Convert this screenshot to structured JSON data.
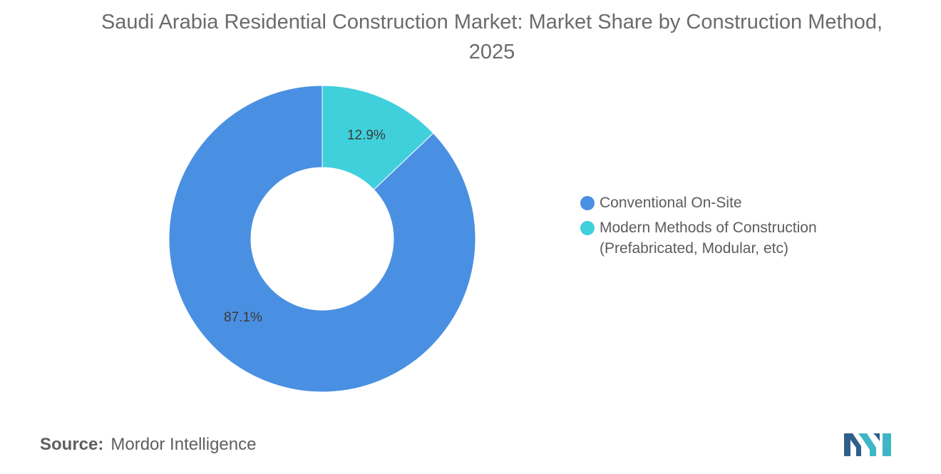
{
  "chart_data": {
    "type": "pie",
    "donut": true,
    "title": "Saudi Arabia Residential Construction Market: Market Share by Construction Method, 2025",
    "categories": [
      "Conventional On-Site",
      "Modern Methods of Construction (Prefabricated, Modular, etc)"
    ],
    "values": [
      87.1,
      12.9
    ],
    "value_labels": [
      "87.1%",
      "12.9%"
    ],
    "unit": "%",
    "colors": [
      "#4a90e2",
      "#3fd0dc"
    ],
    "legend_placement": "right"
  },
  "legend": [
    {
      "label": "Conventional On-Site",
      "color": "#4a90e2"
    },
    {
      "label": "Modern Methods of Construction (Prefabricated, Modular, etc)",
      "color": "#3fd0dc"
    }
  ],
  "source": {
    "prefix": "Source:",
    "text": "Mordor Intelligence"
  },
  "logo": {
    "icon": "mordor-intelligence-logo-icon",
    "colors": [
      "#2f5f8a",
      "#3fb6c6"
    ]
  }
}
